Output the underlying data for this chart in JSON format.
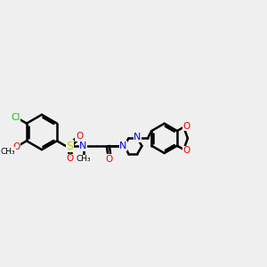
{
  "background_color": "#efefef",
  "bond_color": "#000000",
  "bond_width": 1.8,
  "colors": {
    "C": "#000000",
    "N": "#0000ff",
    "O": "#ff0000",
    "S": "#cccc00",
    "Cl": "#00cc00"
  },
  "figsize": [
    3.0,
    3.0
  ],
  "dpi": 100
}
